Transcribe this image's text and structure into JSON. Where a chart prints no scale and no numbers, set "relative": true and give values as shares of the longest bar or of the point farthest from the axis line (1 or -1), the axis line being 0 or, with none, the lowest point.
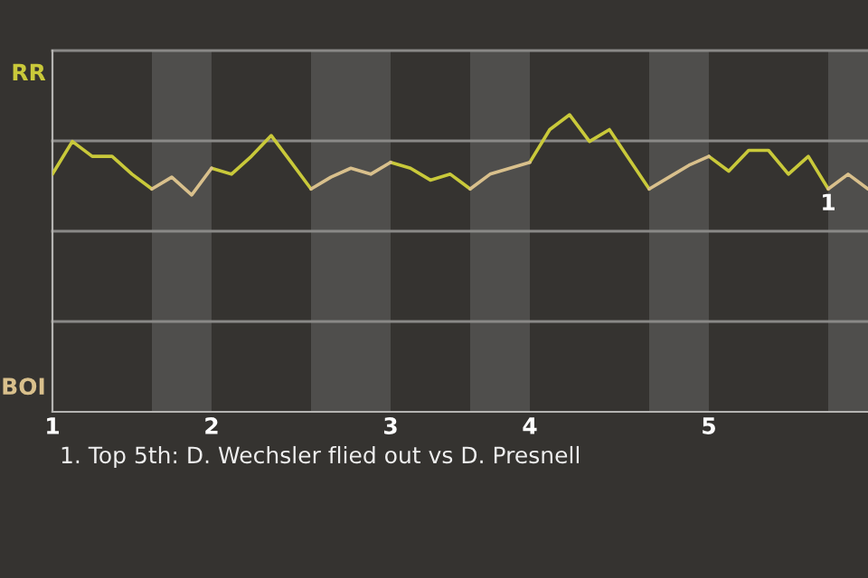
{
  "chart_data": {
    "type": "line",
    "relative": true,
    "categories": [
      "1",
      null,
      null,
      null,
      null,
      null,
      null,
      null,
      "2",
      null,
      null,
      null,
      null,
      null,
      null,
      null,
      null,
      "3",
      null,
      null,
      null,
      null,
      null,
      null,
      "4",
      null,
      null,
      null,
      null,
      null,
      null,
      null,
      null,
      "5",
      null,
      null,
      null,
      null,
      null,
      null,
      null,
      null
    ],
    "series": [
      {
        "name": "RR",
        "color": "#c9c93a",
        "values": [
          0.8,
          0.91,
          0.86,
          0.86,
          0.8,
          0.75,
          null,
          null,
          0.82,
          0.8,
          0.86,
          0.93,
          0.84,
          0.75,
          null,
          null,
          null,
          0.84,
          0.82,
          0.78,
          0.8,
          0.75,
          null,
          null,
          0.84,
          0.95,
          1,
          0.91,
          0.95,
          0.85,
          0.75,
          null,
          null,
          0.86,
          0.81,
          0.88,
          0.88,
          0.8,
          0.86,
          0.75,
          null,
          null
        ]
      },
      {
        "name": "BOI",
        "color": "#d9c08c",
        "values": [
          null,
          null,
          null,
          null,
          null,
          0.75,
          0.79,
          0.73,
          0.82,
          null,
          null,
          null,
          null,
          0.75,
          0.79,
          0.82,
          0.8,
          0.84,
          null,
          null,
          null,
          0.75,
          0.8,
          0.82,
          0.84,
          null,
          null,
          null,
          null,
          null,
          0.75,
          0.79,
          0.83,
          0.86,
          null,
          null,
          null,
          null,
          null,
          0.75,
          0.8,
          0.75
        ]
      }
    ],
    "grid": "y",
    "annotations": [
      {
        "text": "1",
        "y": 0.75
      },
      "1. Top 5th: D. Wechsler flied out vs D. Presnell"
    ]
  }
}
